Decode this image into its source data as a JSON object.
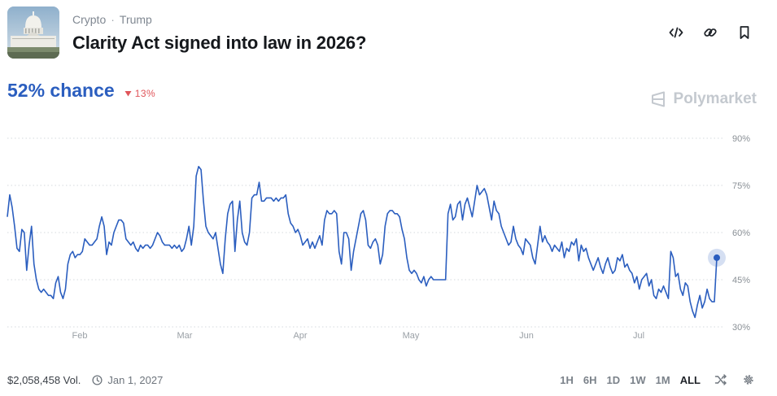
{
  "header": {
    "breadcrumb": [
      "Crypto",
      "Trump"
    ],
    "title": "Clarity Act signed into law in 2026?"
  },
  "summary": {
    "chance": "52% chance",
    "change": "13%",
    "change_direction": "down",
    "brand": "Polymarket"
  },
  "footer": {
    "volume": "$2,058,458 Vol.",
    "end_date": "Jan 1, 2027",
    "ranges": [
      "1H",
      "6H",
      "1D",
      "1W",
      "1M",
      "ALL"
    ],
    "active_range": "ALL"
  },
  "colors": {
    "line": "#2b5ebf",
    "grid": "#d5d9de",
    "change": "#e0555a"
  },
  "chart_data": {
    "type": "line",
    "x_tick_labels": [
      "Feb",
      "Mar",
      "Apr",
      "May",
      "Jun",
      "Jul"
    ],
    "y_tick_labels": [
      "30%",
      "45%",
      "60%",
      "75%",
      "90%"
    ],
    "ylim": [
      30,
      90
    ],
    "grid": "horizontal dotted",
    "series": [
      {
        "values": [
          65,
          72,
          68,
          62,
          55,
          54,
          61,
          60,
          48,
          56,
          62,
          50,
          45,
          42,
          41,
          42,
          41,
          40,
          40,
          39,
          44,
          46,
          41,
          39,
          42,
          50,
          53,
          54,
          52,
          53,
          53,
          54,
          58,
          57,
          56,
          56,
          57,
          58,
          62,
          65,
          62,
          53,
          57,
          56,
          60,
          62,
          64,
          64,
          63,
          58,
          57,
          56,
          57,
          55,
          54,
          56,
          55,
          56,
          56,
          55,
          56,
          58,
          60,
          59,
          57,
          56,
          56,
          56,
          55,
          56,
          55,
          56,
          54,
          55,
          58,
          62,
          56,
          62,
          78,
          81,
          80,
          70,
          62,
          60,
          59,
          58,
          60,
          55,
          50,
          47,
          58,
          66,
          69,
          70,
          54,
          64,
          70,
          60,
          57,
          56,
          60,
          71,
          72,
          72,
          76,
          70,
          70,
          71,
          71,
          71,
          70,
          71,
          70,
          71,
          71,
          72,
          66,
          63,
          62,
          60,
          61,
          59,
          56,
          57,
          58,
          55,
          57,
          55,
          57,
          59,
          56,
          64,
          67,
          66,
          66,
          67,
          66,
          54,
          50,
          60,
          60,
          58,
          48,
          54,
          58,
          62,
          66,
          67,
          64,
          56,
          55,
          57,
          58,
          56,
          50,
          53,
          62,
          66,
          67,
          67,
          66,
          66,
          65,
          61,
          58,
          52,
          48,
          47,
          48,
          47,
          45,
          44,
          46,
          43,
          45,
          46,
          45,
          45,
          45,
          45,
          45,
          45,
          66,
          69,
          64,
          65,
          69,
          70,
          64,
          69,
          71,
          68,
          65,
          70,
          75,
          72,
          73,
          74,
          72,
          68,
          64,
          70,
          67,
          66,
          62,
          60,
          58,
          56,
          57,
          62,
          58,
          56,
          55,
          53,
          58,
          57,
          56,
          52,
          50,
          56,
          62,
          57,
          59,
          57,
          56,
          54,
          56,
          55,
          54,
          57,
          52,
          55,
          54,
          57,
          56,
          58,
          51,
          56,
          54,
          55,
          52,
          50,
          48,
          50,
          52,
          49,
          47,
          50,
          52,
          49,
          47,
          48,
          52,
          51,
          53,
          49,
          50,
          48,
          47,
          44,
          46,
          42,
          45,
          46,
          47,
          43,
          45,
          40,
          39,
          42,
          41,
          43,
          41,
          39,
          54,
          52,
          46,
          47,
          42,
          40,
          44,
          43,
          38,
          35,
          33,
          37,
          40,
          36,
          38,
          42,
          39,
          38,
          38,
          52
        ]
      }
    ]
  }
}
